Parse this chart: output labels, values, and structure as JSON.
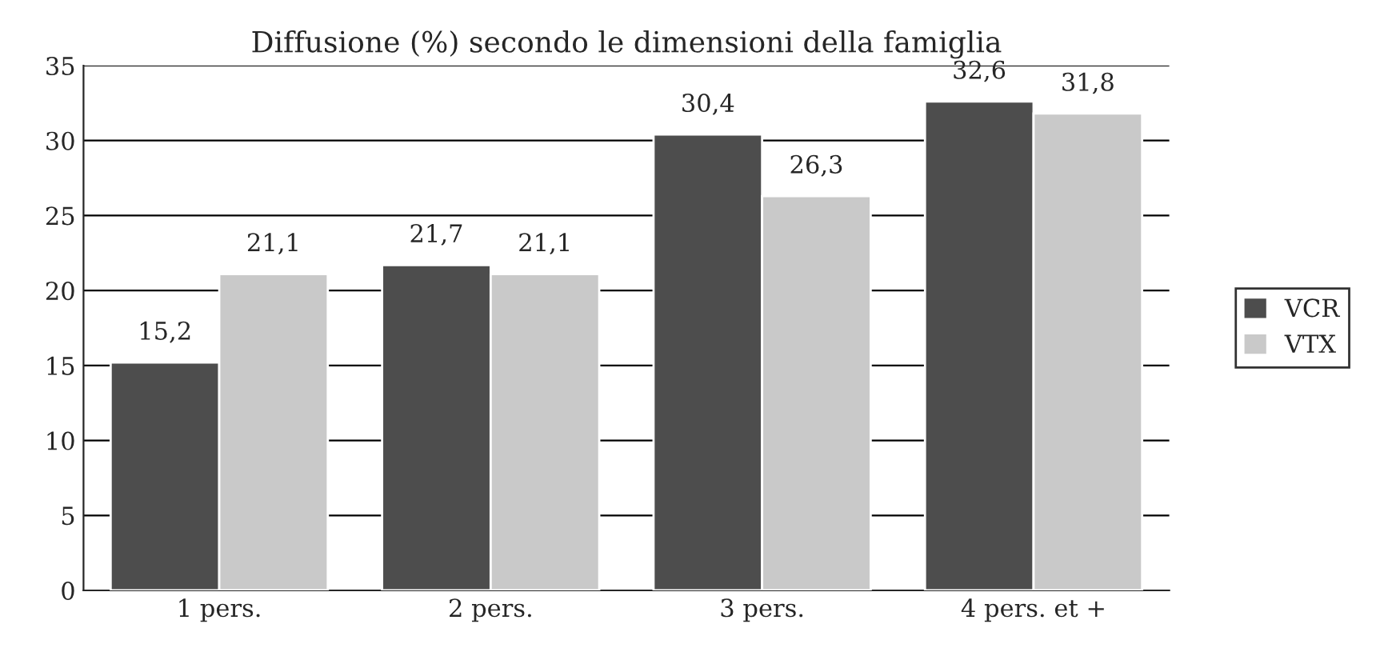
{
  "chart_data": {
    "type": "bar",
    "title": "Diffusione (%) secondo le dimensioni della famiglia",
    "categories": [
      "1 pers.",
      "2 pers.",
      "3 pers.",
      "4 pers. et +"
    ],
    "series": [
      {
        "name": "VCR",
        "color": "#4d4d4d",
        "values": [
          15.2,
          21.7,
          30.4,
          32.6
        ],
        "value_labels": [
          "15,2",
          "21,7",
          "30,4",
          "32,6"
        ]
      },
      {
        "name": "VTX",
        "color": "#c9c9c9",
        "values": [
          21.1,
          21.1,
          26.3,
          31.8
        ],
        "value_labels": [
          "21,1",
          "21,1",
          "26,3",
          "31,8"
        ]
      }
    ],
    "ylim": [
      0,
      35
    ],
    "yticks": [
      0,
      5,
      10,
      15,
      20,
      25,
      30,
      35
    ],
    "grid": "y",
    "legend": "right"
  }
}
